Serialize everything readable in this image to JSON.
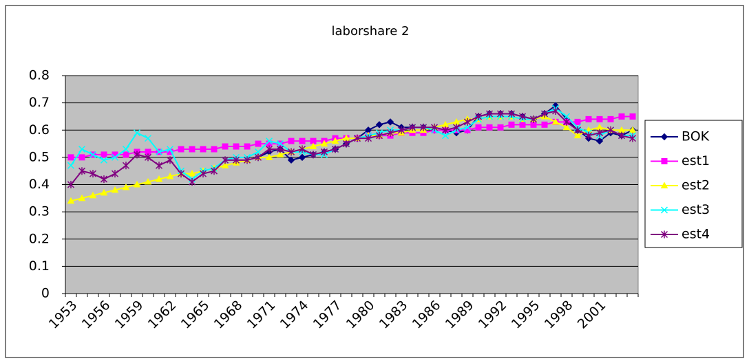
{
  "chart_data": {
    "type": "line",
    "title": "laborshare 2",
    "categories": [
      "1953",
      null,
      null,
      "1956",
      null,
      null,
      "1959",
      null,
      null,
      "1962",
      null,
      null,
      "1965",
      null,
      null,
      "1968",
      null,
      null,
      "1971",
      null,
      null,
      "1974",
      null,
      null,
      "1977",
      null,
      null,
      "1980",
      null,
      null,
      "1983",
      null,
      null,
      "1986",
      null,
      null,
      "1989",
      null,
      null,
      "1992",
      null,
      null,
      "1995",
      null,
      null,
      "1998",
      null,
      null,
      "2001",
      null,
      null,
      null
    ],
    "ylim": [
      0,
      0.8
    ],
    "yticks": [
      0,
      0.1,
      0.2,
      0.3,
      0.4,
      0.5,
      0.6,
      0.7,
      0.8
    ],
    "grid": true,
    "legend": "right",
    "series": [
      {
        "name": "BOK",
        "color": "#000080",
        "marker": "diamond",
        "values": [
          null,
          null,
          null,
          null,
          null,
          null,
          null,
          null,
          null,
          null,
          null,
          null,
          null,
          null,
          null,
          null,
          null,
          0.5,
          0.52,
          0.53,
          0.49,
          0.5,
          0.51,
          0.52,
          0.53,
          0.55,
          0.57,
          0.6,
          0.62,
          0.63,
          0.61,
          0.61,
          0.61,
          0.6,
          0.6,
          0.59,
          0.6,
          0.65,
          0.66,
          0.66,
          0.66,
          0.65,
          0.64,
          0.66,
          0.69,
          0.64,
          0.6,
          0.57,
          0.56,
          0.59,
          0.58,
          0.6
        ]
      },
      {
        "name": "est1",
        "color": "#ff00ff",
        "marker": "square",
        "values": [
          0.5,
          0.5,
          0.51,
          0.51,
          0.51,
          0.51,
          0.52,
          0.52,
          0.52,
          0.52,
          0.53,
          0.53,
          0.53,
          0.53,
          0.54,
          0.54,
          0.54,
          0.55,
          0.55,
          0.55,
          0.56,
          0.56,
          0.56,
          0.56,
          0.57,
          0.57,
          0.57,
          0.58,
          0.58,
          0.58,
          0.59,
          0.59,
          0.59,
          0.6,
          0.6,
          0.6,
          0.6,
          0.61,
          0.61,
          0.61,
          0.62,
          0.62,
          0.62,
          0.62,
          0.63,
          0.63,
          0.63,
          0.64,
          0.64,
          0.64,
          0.65,
          0.65
        ]
      },
      {
        "name": "est2",
        "color": "#ffff00",
        "marker": "triangle",
        "values": [
          0.34,
          0.35,
          0.36,
          0.37,
          0.38,
          0.39,
          0.4,
          0.41,
          0.42,
          0.43,
          0.44,
          0.44,
          0.45,
          0.46,
          0.47,
          0.48,
          0.49,
          0.5,
          0.5,
          0.51,
          0.52,
          0.53,
          0.54,
          0.55,
          0.56,
          0.57,
          0.57,
          0.58,
          0.58,
          0.59,
          0.59,
          0.6,
          0.6,
          0.61,
          0.62,
          0.63,
          0.64,
          0.64,
          0.65,
          0.65,
          0.65,
          0.64,
          0.64,
          0.65,
          0.63,
          0.61,
          0.58,
          0.6,
          0.61,
          0.6,
          0.6,
          0.6
        ]
      },
      {
        "name": "est3",
        "color": "#00ffff",
        "marker": "x",
        "values": [
          0.47,
          0.53,
          0.51,
          0.49,
          0.5,
          0.53,
          0.59,
          0.57,
          0.52,
          0.53,
          0.45,
          0.42,
          0.45,
          0.46,
          0.49,
          0.5,
          0.5,
          0.52,
          0.56,
          0.55,
          0.52,
          0.52,
          0.51,
          0.51,
          0.53,
          0.55,
          0.57,
          0.58,
          0.59,
          0.6,
          0.6,
          0.61,
          0.61,
          0.6,
          0.58,
          0.6,
          0.61,
          0.64,
          0.65,
          0.65,
          0.65,
          0.64,
          0.64,
          0.66,
          0.68,
          0.65,
          0.61,
          0.59,
          0.58,
          0.6,
          0.58,
          0.58
        ]
      },
      {
        "name": "est4",
        "color": "#800080",
        "marker": "star",
        "values": [
          0.4,
          0.45,
          0.44,
          0.42,
          0.44,
          0.47,
          0.51,
          0.5,
          0.47,
          0.49,
          0.44,
          0.41,
          0.44,
          0.45,
          0.49,
          0.49,
          0.49,
          0.5,
          0.53,
          0.53,
          0.52,
          0.53,
          0.51,
          0.52,
          0.53,
          0.55,
          0.57,
          0.57,
          0.58,
          0.59,
          0.6,
          0.61,
          0.61,
          0.61,
          0.6,
          0.61,
          0.63,
          0.65,
          0.66,
          0.66,
          0.66,
          0.65,
          0.64,
          0.66,
          0.67,
          0.63,
          0.6,
          0.58,
          0.59,
          0.6,
          0.58,
          0.57
        ]
      }
    ]
  }
}
